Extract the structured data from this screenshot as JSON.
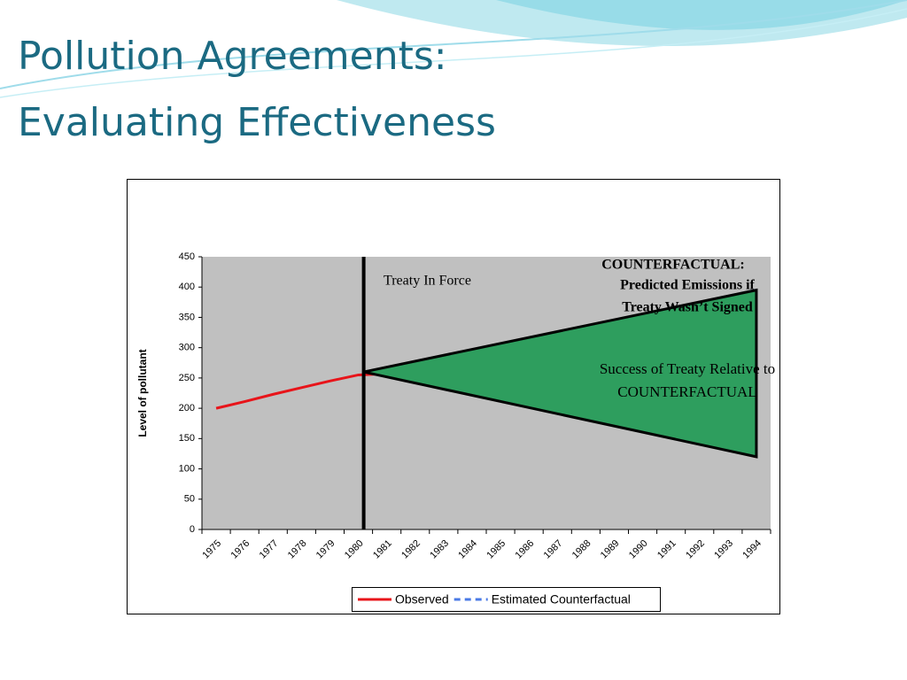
{
  "slide": {
    "title_lines": [
      "Pollution Agreements:",
      "Evaluating Effectiveness"
    ]
  },
  "chart_data": {
    "type": "line",
    "y_label": "Level of pollutant",
    "categories": [
      "1975",
      "1976",
      "1977",
      "1978",
      "1979",
      "1980",
      "1981",
      "1982",
      "1983",
      "1984",
      "1985",
      "1986",
      "1987",
      "1988",
      "1989",
      "1990",
      "1991",
      "1992",
      "1993",
      "1994"
    ],
    "series": [
      {
        "name": "Observed",
        "color": "#e8141a",
        "dash": false,
        "values": [
          200,
          211,
          223,
          234,
          245,
          255,
          257,
          246,
          236,
          225,
          215,
          204,
          194,
          183,
          173,
          162,
          152,
          141,
          131,
          120
        ]
      },
      {
        "name": "Estimated Counterfactual",
        "color": "#4a7ae6",
        "dash": true,
        "values": [
          null,
          null,
          null,
          null,
          null,
          null,
          260,
          270,
          281,
          291,
          302,
          312,
          322,
          333,
          343,
          353,
          364,
          374,
          385,
          395
        ]
      }
    ],
    "ylim": [
      0,
      450
    ],
    "yticks": [
      0,
      50,
      100,
      150,
      200,
      250,
      300,
      350,
      400,
      450
    ],
    "legend": "bottom",
    "annotations": {
      "treaty": "Treaty In Force",
      "counterfactual": [
        "COUNTERFACTUAL:",
        "Predicted Emissions if",
        "Treaty Wasn’t Signed"
      ],
      "success": [
        "Success of Treaty Relative to",
        "COUNTERFACTUAL"
      ]
    }
  }
}
